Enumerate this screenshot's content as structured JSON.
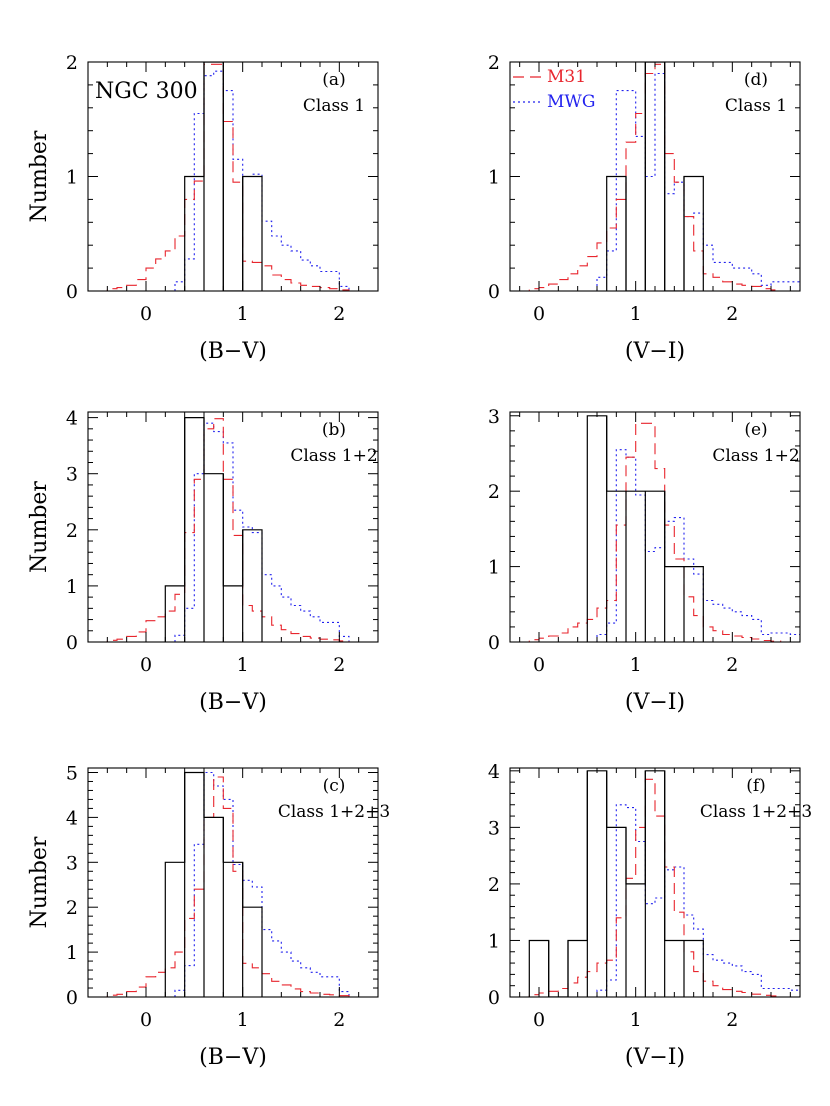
{
  "colors": {
    "ngc300": "#000000",
    "m31": "#e8262e",
    "mwg": "#2222ee"
  },
  "chart_data": [
    {
      "type": "histogram",
      "panel_id": "(a)",
      "class_label": "Class 1",
      "galaxy_label": "NGC 300",
      "xlabel": "(B−V)",
      "ylabel": "Number",
      "xlim": [
        -0.6,
        2.4
      ],
      "ylim": [
        0,
        2
      ],
      "xticks": [
        "0",
        "1",
        "2"
      ],
      "yticks": [
        "0",
        "1",
        "2"
      ],
      "series": [
        {
          "name": "",
          "style": "solid",
          "edges": [
            0.4,
            0.6,
            0.8,
            1.0,
            1.2
          ],
          "values": [
            1,
            2,
            0,
            1
          ]
        },
        {
          "name": "M31",
          "style": "dashed",
          "edges": [
            -0.5,
            -0.4,
            -0.3,
            -0.2,
            -0.1,
            0.0,
            0.1,
            0.2,
            0.3,
            0.4,
            0.5,
            0.6,
            0.7,
            0.8,
            0.9,
            1.0,
            1.1,
            1.2,
            1.3,
            1.4,
            1.5,
            1.6,
            1.7,
            1.8,
            1.9,
            2.0,
            2.1
          ],
          "values": [
            0,
            0.02,
            0.03,
            0.05,
            0.1,
            0.2,
            0.28,
            0.35,
            0.48,
            0.8,
            0.96,
            1.98,
            1.98,
            1.48,
            0.95,
            0.26,
            0.25,
            0.22,
            0.14,
            0.1,
            0.07,
            0.05,
            0.04,
            0.03,
            0.02,
            0.01
          ]
        },
        {
          "name": "MWG",
          "style": "dotted",
          "edges": [
            0.3,
            0.4,
            0.5,
            0.6,
            0.7,
            0.8,
            0.9,
            1.0,
            1.1,
            1.2,
            1.3,
            1.4,
            1.5,
            1.6,
            1.7,
            1.8,
            1.9,
            2.0,
            2.1
          ],
          "values": [
            0.08,
            0.28,
            1.55,
            1.88,
            1.92,
            1.75,
            1.15,
            1.0,
            1.02,
            0.61,
            0.48,
            0.4,
            0.35,
            0.27,
            0.22,
            0.17,
            0.17,
            0.04
          ]
        }
      ]
    },
    {
      "type": "histogram",
      "panel_id": "(b)",
      "class_label": "Class 1+2",
      "xlabel": "(B−V)",
      "ylabel": "Number",
      "xlim": [
        -0.6,
        2.4
      ],
      "ylim": [
        0,
        4.1
      ],
      "xticks": [
        "0",
        "1",
        "2"
      ],
      "yticks": [
        "0",
        "1",
        "2",
        "3",
        "4"
      ],
      "series": [
        {
          "name": "",
          "style": "solid",
          "edges": [
            0.2,
            0.4,
            0.6,
            0.8,
            1.0,
            1.2
          ],
          "values": [
            1,
            4,
            3,
            1,
            2
          ]
        },
        {
          "name": "M31",
          "style": "dashed",
          "edges": [
            -0.5,
            -0.4,
            -0.3,
            -0.2,
            -0.1,
            0.0,
            0.1,
            0.2,
            0.3,
            0.4,
            0.5,
            0.6,
            0.7,
            0.8,
            0.9,
            1.0,
            1.1,
            1.2,
            1.3,
            1.4,
            1.5,
            1.6,
            1.7,
            1.8,
            1.9,
            2.0,
            2.1
          ],
          "values": [
            0,
            0.03,
            0.05,
            0.1,
            0.18,
            0.38,
            0.45,
            0.55,
            0.85,
            1.95,
            2.9,
            3.8,
            3.98,
            2.9,
            1.9,
            0.65,
            0.55,
            0.45,
            0.3,
            0.22,
            0.15,
            0.1,
            0.07,
            0.05,
            0.04,
            0.02
          ]
        },
        {
          "name": "MWG",
          "style": "dotted",
          "edges": [
            0.3,
            0.4,
            0.5,
            0.6,
            0.7,
            0.8,
            0.9,
            1.0,
            1.1,
            1.2,
            1.3,
            1.4,
            1.5,
            1.6,
            1.7,
            1.8,
            1.9,
            2.0,
            2.1
          ],
          "values": [
            0.12,
            0.6,
            3.0,
            3.9,
            3.75,
            3.55,
            2.35,
            2.05,
            1.95,
            1.2,
            1.0,
            0.8,
            0.65,
            0.55,
            0.45,
            0.35,
            0.35,
            0.1
          ]
        }
      ]
    },
    {
      "type": "histogram",
      "panel_id": "(c)",
      "class_label": "Class 1+2+3",
      "xlabel": "(B−V)",
      "ylabel": "Number",
      "xlim": [
        -0.6,
        2.4
      ],
      "ylim": [
        0,
        5.1
      ],
      "xticks": [
        "0",
        "1",
        "2"
      ],
      "yticks": [
        "0",
        "1",
        "2",
        "3",
        "4",
        "5"
      ],
      "series": [
        {
          "name": "",
          "style": "solid",
          "edges": [
            0.2,
            0.4,
            0.6,
            0.8,
            1.0,
            1.2
          ],
          "values": [
            3,
            5,
            4,
            3,
            2
          ]
        },
        {
          "name": "M31",
          "style": "dashed",
          "edges": [
            -0.5,
            -0.4,
            -0.3,
            -0.2,
            -0.1,
            0.0,
            0.1,
            0.2,
            0.3,
            0.4,
            0.5,
            0.6,
            0.7,
            0.8,
            0.9,
            1.0,
            1.1,
            1.2,
            1.3,
            1.4,
            1.5,
            1.6,
            1.7,
            1.8,
            1.9,
            2.0,
            2.1
          ],
          "values": [
            0,
            0.04,
            0.06,
            0.12,
            0.22,
            0.45,
            0.55,
            0.65,
            1.0,
            1.75,
            2.4,
            4.0,
            4.9,
            4.2,
            2.8,
            0.75,
            0.65,
            0.52,
            0.35,
            0.27,
            0.18,
            0.12,
            0.09,
            0.06,
            0.05,
            0.03
          ]
        },
        {
          "name": "MWG",
          "style": "dotted",
          "edges": [
            0.3,
            0.4,
            0.5,
            0.6,
            0.7,
            0.8,
            0.9,
            1.0,
            1.1,
            1.2,
            1.3,
            1.4,
            1.5,
            1.6,
            1.7,
            1.8,
            1.9,
            2.0,
            2.1
          ],
          "values": [
            0.15,
            0.7,
            3.4,
            5.0,
            4.7,
            4.4,
            2.95,
            2.6,
            2.45,
            1.5,
            1.25,
            1.0,
            0.8,
            0.65,
            0.55,
            0.45,
            0.45,
            0.12
          ]
        }
      ]
    },
    {
      "type": "histogram",
      "panel_id": "(d)",
      "class_label": "Class 1",
      "xlabel": "(V−I)",
      "ylabel": "",
      "xlim": [
        -0.3,
        2.7
      ],
      "ylim": [
        0,
        2
      ],
      "xticks": [
        "0",
        "1",
        "2"
      ],
      "yticks": [
        "0",
        "1",
        "2"
      ],
      "series": [
        {
          "name": "",
          "style": "solid",
          "edges": [
            0.7,
            0.9,
            1.1,
            1.3,
            1.5,
            1.7
          ],
          "values": [
            1,
            0,
            2,
            0,
            1
          ]
        },
        {
          "name": "M31",
          "style": "dashed",
          "edges": [
            -0.2,
            -0.1,
            0.0,
            0.1,
            0.2,
            0.3,
            0.4,
            0.5,
            0.6,
            0.7,
            0.8,
            0.9,
            1.0,
            1.1,
            1.2,
            1.3,
            1.4,
            1.5,
            1.6,
            1.7,
            1.8,
            1.9,
            2.0,
            2.1,
            2.2,
            2.3,
            2.4,
            2.5
          ],
          "values": [
            0,
            0.02,
            0.03,
            0.06,
            0.1,
            0.15,
            0.22,
            0.3,
            0.42,
            0.55,
            0.8,
            1.3,
            1.55,
            1.9,
            1.98,
            1.2,
            0.95,
            0.65,
            0.35,
            0.15,
            0.12,
            0.08,
            0.06,
            0.05,
            0.04,
            0.02,
            0.01
          ]
        },
        {
          "name": "MWG",
          "style": "dotted",
          "edges": [
            0.6,
            0.7,
            0.8,
            0.9,
            1.0,
            1.1,
            1.2,
            1.3,
            1.4,
            1.5,
            1.6,
            1.7,
            1.8,
            1.9,
            2.0,
            2.1,
            2.2,
            2.3,
            2.4,
            2.5,
            2.6,
            2.7
          ],
          "values": [
            0.12,
            0.35,
            1.75,
            1.75,
            1.35,
            1.0,
            1.9,
            0.85,
            0.95,
            0.65,
            0.68,
            0.4,
            0.25,
            0.25,
            0.2,
            0.2,
            0.15,
            0.05,
            0.08,
            0.08,
            0.08
          ]
        }
      ]
    },
    {
      "type": "histogram",
      "panel_id": "(e)",
      "class_label": "Class 1+2",
      "xlabel": "(V−I)",
      "ylabel": "",
      "xlim": [
        -0.3,
        2.7
      ],
      "ylim": [
        0,
        3.05
      ],
      "xticks": [
        "0",
        "1",
        "2"
      ],
      "yticks": [
        "0",
        "1",
        "2",
        "3"
      ],
      "series": [
        {
          "name": "",
          "style": "solid",
          "edges": [
            0.5,
            0.7,
            0.9,
            1.1,
            1.3,
            1.5,
            1.7
          ],
          "values": [
            3,
            2,
            2,
            2,
            1,
            1
          ]
        },
        {
          "name": "M31",
          "style": "dashed",
          "edges": [
            -0.2,
            -0.1,
            0.0,
            0.1,
            0.2,
            0.3,
            0.4,
            0.5,
            0.6,
            0.7,
            0.8,
            0.9,
            1.0,
            1.1,
            1.2,
            1.3,
            1.4,
            1.5,
            1.6,
            1.7,
            1.8,
            1.9,
            2.0,
            2.1,
            2.2,
            2.3,
            2.4,
            2.5
          ],
          "values": [
            0,
            0.03,
            0.05,
            0.08,
            0.12,
            0.2,
            0.25,
            0.3,
            0.45,
            0.55,
            1.55,
            2.45,
            2.9,
            2.9,
            2.3,
            1.55,
            1.1,
            0.6,
            0.35,
            0.2,
            0.15,
            0.1,
            0.08,
            0.06,
            0.04,
            0.02,
            0.01
          ]
        },
        {
          "name": "MWG",
          "style": "dotted",
          "edges": [
            0.6,
            0.7,
            0.8,
            0.9,
            1.0,
            1.1,
            1.2,
            1.3,
            1.4,
            1.5,
            1.6,
            1.7,
            1.8,
            1.9,
            2.0,
            2.1,
            2.2,
            2.3,
            2.4,
            2.5,
            2.6,
            2.7
          ],
          "values": [
            0.1,
            0.25,
            2.55,
            2.45,
            1.95,
            1.2,
            1.25,
            1.6,
            1.65,
            1.1,
            0.9,
            0.55,
            0.5,
            0.45,
            0.4,
            0.35,
            0.3,
            0.1,
            0.12,
            0.12,
            0.1
          ]
        }
      ]
    },
    {
      "type": "histogram",
      "panel_id": "(f)",
      "class_label": "Class 1+2+3",
      "xlabel": "(V−I)",
      "ylabel": "",
      "xlim": [
        -0.3,
        2.7
      ],
      "ylim": [
        0,
        4.05
      ],
      "xticks": [
        "0",
        "1",
        "2"
      ],
      "yticks": [
        "0",
        "1",
        "2",
        "3",
        "4"
      ],
      "series": [
        {
          "name": "",
          "style": "solid",
          "edges": [
            -0.1,
            0.1,
            0.3,
            0.5,
            0.7,
            0.9,
            1.1,
            1.3,
            1.5,
            1.7
          ],
          "values": [
            1,
            0,
            1,
            4,
            3,
            2,
            4,
            1,
            1
          ]
        },
        {
          "name": "M31",
          "style": "dashed",
          "edges": [
            -0.2,
            -0.1,
            0.0,
            0.1,
            0.2,
            0.3,
            0.4,
            0.5,
            0.6,
            0.7,
            0.8,
            0.9,
            1.0,
            1.1,
            1.2,
            1.3,
            1.4,
            1.5,
            1.6,
            1.7,
            1.8,
            1.9,
            2.0,
            2.1,
            2.2,
            2.3,
            2.4,
            2.5
          ],
          "values": [
            0,
            0.04,
            0.07,
            0.1,
            0.15,
            0.25,
            0.35,
            0.45,
            0.6,
            0.65,
            1.4,
            2.1,
            3.0,
            3.85,
            3.2,
            2.3,
            1.5,
            0.8,
            0.45,
            0.28,
            0.2,
            0.13,
            0.1,
            0.08,
            0.05,
            0.03,
            0.02
          ]
        },
        {
          "name": "MWG",
          "style": "dotted",
          "edges": [
            0.6,
            0.7,
            0.8,
            0.9,
            1.0,
            1.1,
            1.2,
            1.3,
            1.4,
            1.5,
            1.6,
            1.7,
            1.8,
            1.9,
            2.0,
            2.1,
            2.2,
            2.3,
            2.4,
            2.5,
            2.6,
            2.7
          ],
          "values": [
            0.12,
            0.3,
            3.4,
            3.35,
            2.75,
            1.65,
            1.75,
            2.25,
            2.3,
            1.45,
            1.2,
            0.75,
            0.65,
            0.6,
            0.55,
            0.45,
            0.4,
            0.15,
            0.15,
            0.15,
            0.12
          ]
        }
      ]
    }
  ]
}
